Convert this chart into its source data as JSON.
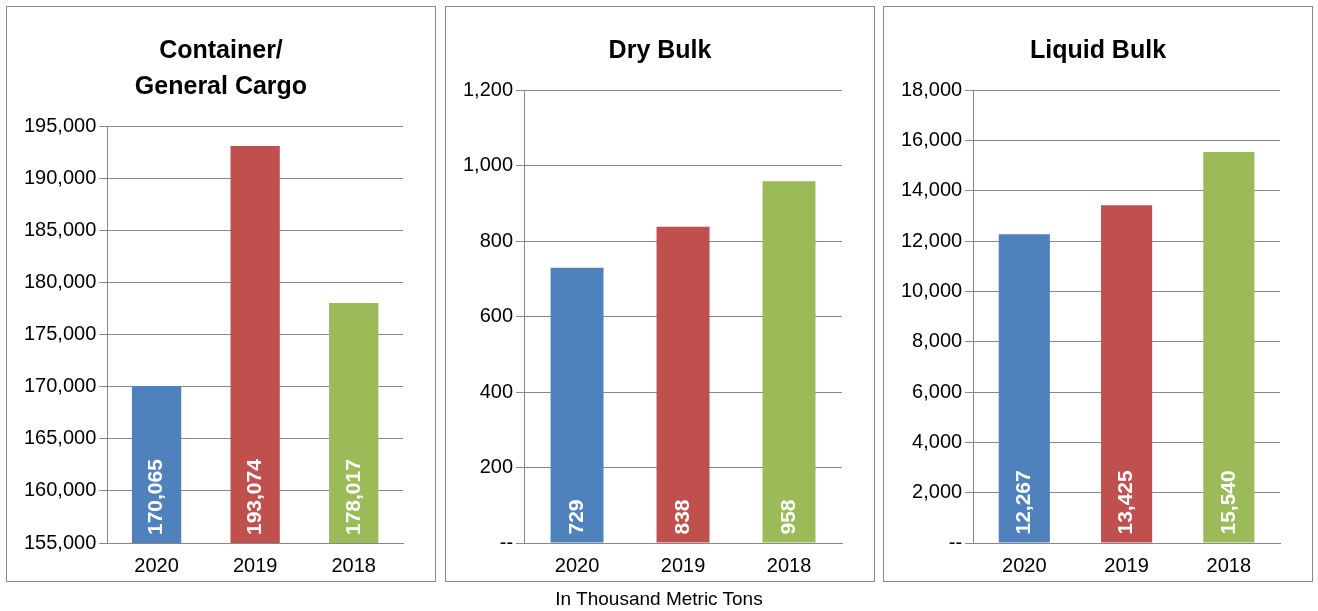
{
  "chart_data": [
    {
      "type": "bar",
      "title": "Container/ General Cargo",
      "categories": [
        "2020",
        "2019",
        "2018"
      ],
      "values": [
        170065,
        193074,
        178017
      ],
      "value_labels": [
        "170,065",
        "193,074",
        "178,017"
      ],
      "colors": [
        "#4f81bd",
        "#c0504d",
        "#9bbb59"
      ],
      "ylim": [
        155000,
        195000
      ],
      "yticks": [
        {
          "value": 155000,
          "label": "155,000"
        },
        {
          "value": 160000,
          "label": "160,000"
        },
        {
          "value": 165000,
          "label": "165,000"
        },
        {
          "value": 170000,
          "label": "170,000"
        },
        {
          "value": 175000,
          "label": "175,000"
        },
        {
          "value": 180000,
          "label": "180,000"
        },
        {
          "value": 185000,
          "label": "185,000"
        },
        {
          "value": 190000,
          "label": "190,000"
        },
        {
          "value": 195000,
          "label": "195,000"
        }
      ],
      "grid": "y"
    },
    {
      "type": "bar",
      "title": "Dry Bulk",
      "categories": [
        "2020",
        "2019",
        "2018"
      ],
      "values": [
        729,
        838,
        958
      ],
      "colors": [
        "#4f81bd",
        "#c0504d",
        "#9bbb59"
      ],
      "ylim": [
        0,
        1200
      ],
      "yticks": [
        {
          "value": 0,
          "label": "--"
        },
        200,
        400,
        600,
        800,
        {
          "value": 1000,
          "label": "1,000"
        },
        {
          "value": 1200,
          "label": "1,200"
        }
      ],
      "grid": "y",
      "data_labels": true,
      "annotations": [
        "In Thousand Metric Tons"
      ]
    },
    {
      "type": "bar",
      "title": "Liquid Bulk",
      "categories": [
        "2020",
        "2019",
        "2018"
      ],
      "values": [
        12267,
        13425,
        15540
      ],
      "value_labels": [
        "12,267",
        "13,425",
        "15,540"
      ],
      "colors": [
        "#4f81bd",
        "#c0504d",
        "#9bbb59"
      ],
      "ylim": [
        0,
        18000
      ],
      "yticks": [
        {
          "value": 0,
          "label": "--"
        },
        {
          "value": 2000,
          "label": "2,000"
        },
        {
          "value": 4000,
          "label": "4,000"
        },
        {
          "value": 6000,
          "label": "6,000"
        },
        {
          "value": 8000,
          "label": "8,000"
        },
        {
          "value": 10000,
          "label": "10,000"
        },
        {
          "value": 12000,
          "label": "12,000"
        },
        {
          "value": 14000,
          "label": "14,000"
        },
        {
          "value": 16000,
          "label": "16,000"
        },
        {
          "value": 18000,
          "label": "18,000"
        }
      ],
      "grid": "y"
    }
  ]
}
